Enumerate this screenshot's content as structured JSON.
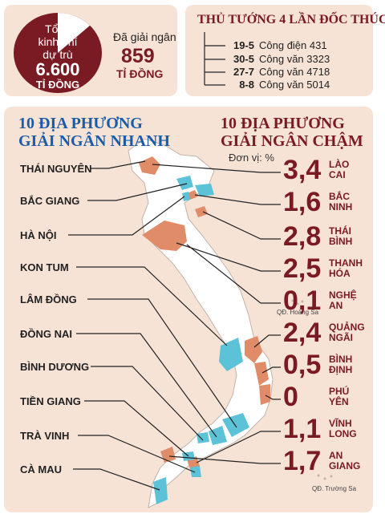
{
  "budget": {
    "line1": "Tổng",
    "line2": "kinh phí",
    "line3": "dự trù",
    "value": "6.600",
    "unit": "TỈ ĐỒNG",
    "disbursed_label": "Đã giải ngân",
    "disbursed_value": "859",
    "disbursed_unit": "TỈ ĐỒNG",
    "disbursed_fraction": 0.13
  },
  "timeline": {
    "title": "THỦ TƯỚNG 4 LẦN ĐỐC THÚC",
    "items": [
      {
        "date": "19-5",
        "doc": "Công điện 431"
      },
      {
        "date": "30-5",
        "doc": "Công văn 3323"
      },
      {
        "date": "27-7",
        "doc": "Công văn 4718"
      },
      {
        "date": "8-8",
        "doc": "Công văn 5014"
      }
    ]
  },
  "fast": {
    "title_line1": "10 ĐỊA PHƯƠNG",
    "title_line2": "GIẢI NGÂN NHANH",
    "provinces": [
      "THÁI NGUYÊN",
      "BẮC GIANG",
      "HÀ NỘI",
      "KON TUM",
      "LÂM ĐỒNG",
      "ĐỒNG NAI",
      "BÌNH DƯƠNG",
      "TIỀN GIANG",
      "TRÀ VINH",
      "CÀ MAU"
    ]
  },
  "slow": {
    "title_line1": "10 ĐỊA PHƯƠNG",
    "title_line2": "GIẢI NGÂN CHẬM",
    "unit": "Đơn vị: %",
    "provinces": [
      {
        "value": "3,4",
        "name1": "LÀO",
        "name2": "CAI"
      },
      {
        "value": "1,6",
        "name1": "BẮC",
        "name2": "NINH"
      },
      {
        "value": "2,8",
        "name1": "THÁI",
        "name2": "BÌNH"
      },
      {
        "value": "2,5",
        "name1": "THANH",
        "name2": "HÓA"
      },
      {
        "value": "0,1",
        "name1": "NGHỆ",
        "name2": "AN"
      },
      {
        "value": "2,4",
        "name1": "QUẢNG",
        "name2": "NGÃI"
      },
      {
        "value": "0,5",
        "name1": "BÌNH",
        "name2": "ĐỊNH"
      },
      {
        "value": "0",
        "name1": "PHÚ",
        "name2": "YÊN"
      },
      {
        "value": "1,1",
        "name1": "VĨNH",
        "name2": "LONG"
      },
      {
        "value": "1,7",
        "name1": "AN",
        "name2": "GIANG"
      }
    ]
  },
  "notes": {
    "hoang_sa": "QĐ. Hoàng Sa",
    "truong_sa": "QĐ. Trường Sa"
  },
  "colors": {
    "panel": "#f7e3d6",
    "dark_red": "#7a1a22",
    "blue": "#1a5ca8",
    "fast_fill": "#5bc2d8",
    "slow_fill": "#e08c68",
    "land": "#ffffff"
  }
}
